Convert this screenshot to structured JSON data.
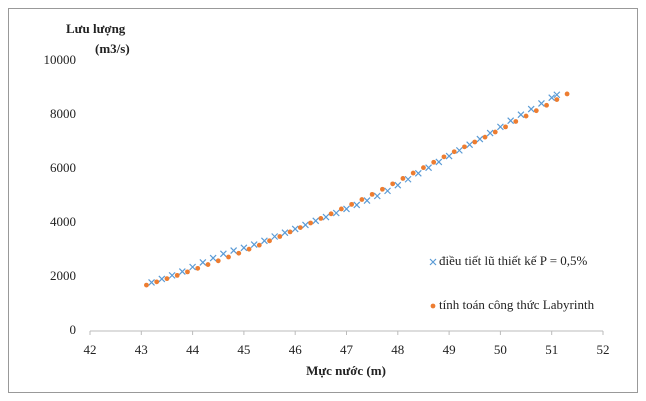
{
  "chart_data": {
    "type": "scatter",
    "y_label": [
      "Lưu lượng",
      "(m3/s)"
    ],
    "x_label": "Mực nước (m)",
    "xlim": [
      42,
      52
    ],
    "xticks": [
      42,
      43,
      44,
      45,
      46,
      47,
      48,
      49,
      50,
      51,
      52
    ],
    "ylim": [
      0,
      10000
    ],
    "yticks": [
      0,
      2000,
      4000,
      6000,
      8000,
      10000
    ],
    "grid": false,
    "legend": "right",
    "series": [
      {
        "name": "điều tiết lũ thiết kế P = 0,5%",
        "color": "#5b9bd5",
        "marker": "x",
        "x": [
          43.2,
          43.4,
          43.6,
          43.8,
          44.0,
          44.2,
          44.4,
          44.6,
          44.8,
          45.0,
          45.2,
          45.4,
          45.6,
          45.8,
          46.0,
          46.2,
          46.4,
          46.6,
          46.8,
          47.0,
          47.2,
          47.4,
          47.6,
          47.8,
          48.0,
          48.2,
          48.4,
          48.6,
          48.8,
          49.0,
          49.2,
          49.4,
          49.6,
          49.8,
          50.0,
          50.2,
          50.4,
          50.6,
          50.8,
          51.0,
          51.1
        ],
        "values": [
          1800,
          1930,
          2060,
          2200,
          2370,
          2540,
          2700,
          2860,
          2980,
          3080,
          3200,
          3340,
          3500,
          3640,
          3780,
          3930,
          4080,
          4220,
          4370,
          4520,
          4670,
          4830,
          5000,
          5190,
          5400,
          5620,
          5840,
          6050,
          6260,
          6480,
          6690,
          6900,
          7110,
          7330,
          7560,
          7790,
          8010,
          8220,
          8430,
          8640,
          8750
        ]
      },
      {
        "name": "tính toán công thức Labyrinth",
        "color": "#ed7d31",
        "marker": "dot",
        "x": [
          43.1,
          43.3,
          43.5,
          43.7,
          43.9,
          44.1,
          44.3,
          44.5,
          44.7,
          44.9,
          45.1,
          45.3,
          45.5,
          45.7,
          45.9,
          46.1,
          46.3,
          46.5,
          46.7,
          46.9,
          47.1,
          47.3,
          47.5,
          47.7,
          47.9,
          48.1,
          48.3,
          48.5,
          48.7,
          48.9,
          49.1,
          49.3,
          49.5,
          49.7,
          49.9,
          50.1,
          50.3,
          50.5,
          50.7,
          50.9,
          51.1,
          51.3
        ],
        "values": [
          1700,
          1820,
          1940,
          2060,
          2190,
          2320,
          2460,
          2600,
          2740,
          2880,
          3030,
          3180,
          3340,
          3500,
          3670,
          3830,
          4000,
          4170,
          4340,
          4520,
          4690,
          4870,
          5060,
          5250,
          5450,
          5650,
          5850,
          6050,
          6250,
          6450,
          6640,
          6820,
          7000,
          7180,
          7370,
          7560,
          7760,
          7960,
          8160,
          8360,
          8570,
          8780
        ]
      }
    ]
  }
}
